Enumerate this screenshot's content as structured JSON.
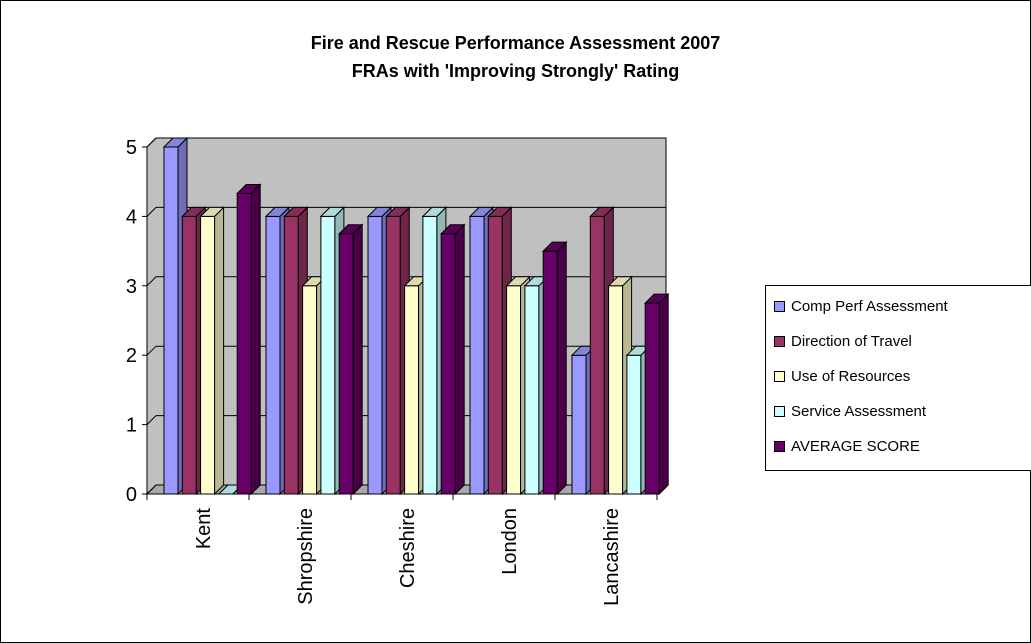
{
  "chart_data": {
    "type": "bar",
    "title": "Fire and Rescue Performance Assessment 2007",
    "subtitle": "FRAs with 'Improving Strongly' Rating",
    "categories": [
      "Kent",
      "Shropshire",
      "Cheshire",
      "London",
      "Lancashire"
    ],
    "series": [
      {
        "name": "Comp Perf Assessment",
        "color": "#9999ff",
        "values": [
          5,
          4,
          4,
          4,
          2
        ]
      },
      {
        "name": "Direction of Travel",
        "color": "#993366",
        "values": [
          4,
          4,
          4,
          4,
          4
        ]
      },
      {
        "name": "Use of Resources",
        "color": "#ffffcc",
        "values": [
          4,
          3,
          3,
          3,
          3
        ]
      },
      {
        "name": "Service Assessment",
        "color": "#ccffff",
        "values": [
          0,
          4,
          4,
          3,
          2
        ]
      },
      {
        "name": "AVERAGE SCORE",
        "color": "#660066",
        "values": [
          4.33,
          3.75,
          3.75,
          3.5,
          2.75
        ]
      }
    ],
    "ylim": [
      0,
      5
    ],
    "yticks": [
      "0",
      "1",
      "2",
      "3",
      "4",
      "5"
    ],
    "grid": true,
    "style": "3d-clustered",
    "legend_position": "right"
  }
}
